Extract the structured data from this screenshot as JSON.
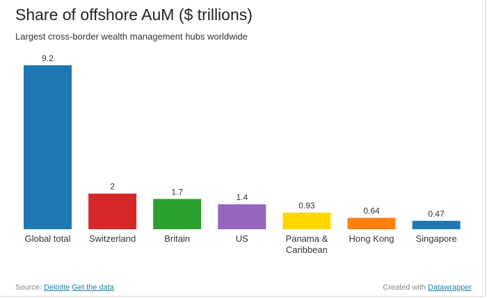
{
  "title": "Share of offshore AuM ($ trillions)",
  "subtitle": "Largest cross-border wealth management hubs worldwide",
  "footer": {
    "source_prefix": "Source:",
    "source_link": "Deloitte",
    "data_link": "Get the data",
    "credit_prefix": "Created with",
    "credit_link": "Datawrapper"
  },
  "chart_data": {
    "type": "bar",
    "categories": [
      "Global total",
      "Switzerland",
      "Britain",
      "US",
      "Panama & Caribbean",
      "Hong Kong",
      "Singapore"
    ],
    "category_lines": [
      [
        "Global total"
      ],
      [
        "Switzerland"
      ],
      [
        "Britain"
      ],
      [
        "US"
      ],
      [
        "Panama &",
        "Caribbean"
      ],
      [
        "Hong Kong"
      ],
      [
        "Singapore"
      ]
    ],
    "values": [
      9.2,
      2,
      1.7,
      1.4,
      0.93,
      0.64,
      0.47
    ],
    "value_labels": [
      "9.2",
      "2",
      "1.7",
      "1.4",
      "0.93",
      "0.64",
      "0.47"
    ],
    "colors": [
      "#1f77b4",
      "#d62728",
      "#2ca02c",
      "#9467bd",
      "#ffd700",
      "#ff7f0e",
      "#1f77b4"
    ],
    "ylim": [
      0,
      9.2
    ],
    "grid": false,
    "legend": "none"
  }
}
